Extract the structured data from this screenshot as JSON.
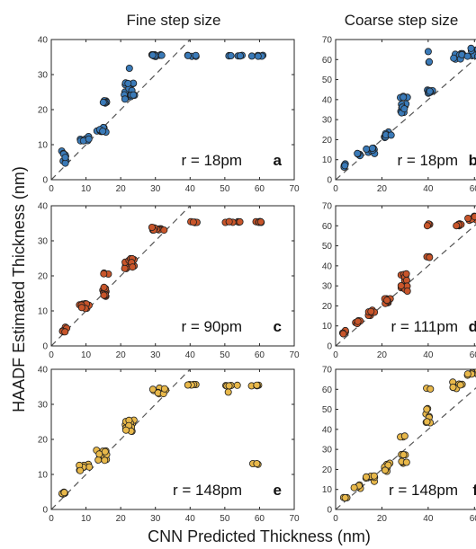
{
  "figure": {
    "col_titles": [
      "Fine step size",
      "Coarse step size"
    ],
    "ylabel": "HAADF Estimated Thickness (nm)",
    "xlabel": "CNN Predicted Thickness (nm)"
  },
  "colors": {
    "blue": "#3a7ab8",
    "orange": "#c8552a",
    "yellow": "#e8b84a",
    "edge": "#1e1e1e",
    "diag": "#555555"
  },
  "chart_data": [
    {
      "type": "scatter",
      "panel": "a",
      "note": "r = 18pm",
      "color": "blue",
      "xlim": [
        0,
        70
      ],
      "ylim": [
        0,
        40
      ],
      "xticks": [
        0,
        10,
        20,
        30,
        40,
        50,
        60,
        70
      ],
      "yticks": [
        0,
        10,
        20,
        30,
        40
      ],
      "diagonal": [
        [
          0,
          0
        ],
        [
          40,
          40
        ]
      ],
      "clusters": [
        {
          "x": [
            3,
            4.5
          ],
          "y": [
            4.5,
            8.5
          ],
          "n": 10
        },
        {
          "x": [
            8,
            11
          ],
          "y": [
            10.5,
            12.5
          ],
          "n": 10
        },
        {
          "x": [
            13,
            16
          ],
          "y": [
            13.5,
            15
          ],
          "n": 12
        },
        {
          "x": [
            14.5,
            16
          ],
          "y": [
            21.5,
            23
          ],
          "n": 8
        },
        {
          "x": [
            21,
            24
          ],
          "y": [
            23,
            28
          ],
          "n": 18
        },
        {
          "x": [
            29,
            33
          ],
          "y": [
            35,
            35.7
          ],
          "n": 10
        },
        {
          "x": [
            39,
            42
          ],
          "y": [
            35.2,
            35.5
          ],
          "n": 5
        },
        {
          "x": [
            50,
            55
          ],
          "y": [
            35.2,
            35.5
          ],
          "n": 7
        },
        {
          "x": [
            57,
            61
          ],
          "y": [
            35.2,
            35.5
          ],
          "n": 7
        }
      ],
      "points": [
        [
          22.5,
          31.8
        ]
      ]
    },
    {
      "type": "scatter",
      "panel": "b",
      "note": "r = 18pm",
      "color": "blue",
      "xlim": [
        0,
        70
      ],
      "ylim": [
        0,
        70
      ],
      "xticks": [
        0,
        20,
        40,
        60
      ],
      "yticks": [
        0,
        10,
        20,
        30,
        40,
        50,
        60,
        70
      ],
      "diagonal": [
        [
          0,
          0
        ],
        [
          67,
          67
        ]
      ],
      "clusters": [
        {
          "x": [
            3,
            4.5
          ],
          "y": [
            6,
            8
          ],
          "n": 5
        },
        {
          "x": [
            9,
            11
          ],
          "y": [
            12,
            13.5
          ],
          "n": 5
        },
        {
          "x": [
            13,
            17
          ],
          "y": [
            13,
            16
          ],
          "n": 8
        },
        {
          "x": [
            21,
            24
          ],
          "y": [
            21,
            24
          ],
          "n": 8
        },
        {
          "x": [
            28,
            31
          ],
          "y": [
            33,
            38
          ],
          "n": 10
        },
        {
          "x": [
            28,
            31
          ],
          "y": [
            41,
            43
          ],
          "n": 4
        },
        {
          "x": [
            39,
            42
          ],
          "y": [
            42,
            45
          ],
          "n": 8
        },
        {
          "x": [
            39,
            41
          ],
          "y": [
            58,
            59
          ],
          "n": 2
        },
        {
          "x": [
            50,
            55
          ],
          "y": [
            60,
            63
          ],
          "n": 10
        },
        {
          "x": [
            57,
            62
          ],
          "y": [
            61,
            66
          ],
          "n": 12
        }
      ],
      "points": [
        [
          40,
          64
        ]
      ]
    },
    {
      "type": "scatter",
      "panel": "c",
      "note": "r = 90pm",
      "color": "orange",
      "xlim": [
        0,
        70
      ],
      "ylim": [
        0,
        40
      ],
      "xticks": [
        0,
        10,
        20,
        30,
        40,
        50,
        60,
        70
      ],
      "yticks": [
        0,
        10,
        20,
        30,
        40
      ],
      "diagonal": [
        [
          0,
          0
        ],
        [
          40,
          40
        ]
      ],
      "clusters": [
        {
          "x": [
            3,
            4.5
          ],
          "y": [
            4,
            5.5
          ],
          "n": 6
        },
        {
          "x": [
            8,
            11
          ],
          "y": [
            10.5,
            12.5
          ],
          "n": 10
        },
        {
          "x": [
            13,
            16
          ],
          "y": [
            14,
            17
          ],
          "n": 12
        },
        {
          "x": [
            15,
            16.5
          ],
          "y": [
            20.5,
            20.8
          ],
          "n": 3
        },
        {
          "x": [
            21,
            24
          ],
          "y": [
            22,
            25
          ],
          "n": 15
        },
        {
          "x": [
            29,
            33
          ],
          "y": [
            33,
            34
          ],
          "n": 10
        },
        {
          "x": [
            39,
            42
          ],
          "y": [
            35.2,
            35.5
          ],
          "n": 5
        },
        {
          "x": [
            50,
            55
          ],
          "y": [
            35.2,
            35.5
          ],
          "n": 7
        },
        {
          "x": [
            57,
            61
          ],
          "y": [
            35.2,
            35.5
          ],
          "n": 7
        }
      ],
      "points": []
    },
    {
      "type": "scatter",
      "panel": "d",
      "note": "r = 111pm",
      "color": "orange",
      "xlim": [
        0,
        70
      ],
      "ylim": [
        0,
        70
      ],
      "xticks": [
        0,
        20,
        40,
        60
      ],
      "yticks": [
        0,
        10,
        20,
        30,
        40,
        50,
        60,
        70
      ],
      "diagonal": [
        [
          0,
          0
        ],
        [
          67,
          67
        ]
      ],
      "clusters": [
        {
          "x": [
            3,
            4.5
          ],
          "y": [
            6,
            8
          ],
          "n": 4
        },
        {
          "x": [
            8,
            11
          ],
          "y": [
            10,
            13
          ],
          "n": 6
        },
        {
          "x": [
            13,
            17
          ],
          "y": [
            14,
            19
          ],
          "n": 8
        },
        {
          "x": [
            21,
            24
          ],
          "y": [
            21,
            25
          ],
          "n": 10
        },
        {
          "x": [
            28,
            31
          ],
          "y": [
            27,
            37
          ],
          "n": 14
        },
        {
          "x": [
            39,
            41
          ],
          "y": [
            44,
            45
          ],
          "n": 3
        },
        {
          "x": [
            39,
            41
          ],
          "y": [
            60,
            61
          ],
          "n": 3
        },
        {
          "x": [
            50,
            55
          ],
          "y": [
            60,
            61
          ],
          "n": 8
        },
        {
          "x": [
            57,
            61
          ],
          "y": [
            62,
            65
          ],
          "n": 8
        }
      ],
      "points": []
    },
    {
      "type": "scatter",
      "panel": "e",
      "note": "r = 148pm",
      "color": "yellow",
      "xlim": [
        0,
        70
      ],
      "ylim": [
        0,
        40
      ],
      "xticks": [
        0,
        10,
        20,
        30,
        40,
        50,
        60,
        70
      ],
      "yticks": [
        0,
        10,
        20,
        30,
        40
      ],
      "diagonal": [
        [
          0,
          0
        ],
        [
          40,
          40
        ]
      ],
      "clusters": [
        {
          "x": [
            3,
            4.5
          ],
          "y": [
            4,
            5.5
          ],
          "n": 6
        },
        {
          "x": [
            8,
            11
          ],
          "y": [
            10.5,
            13
          ],
          "n": 8
        },
        {
          "x": [
            13,
            16
          ],
          "y": [
            14,
            17.5
          ],
          "n": 12
        },
        {
          "x": [
            21,
            24
          ],
          "y": [
            22,
            25.5
          ],
          "n": 14
        },
        {
          "x": [
            29,
            33
          ],
          "y": [
            33,
            35
          ],
          "n": 10
        },
        {
          "x": [
            39,
            42
          ],
          "y": [
            35.5,
            35.7
          ],
          "n": 5
        },
        {
          "x": [
            50,
            55
          ],
          "y": [
            35.2,
            35.5
          ],
          "n": 5
        },
        {
          "x": [
            57,
            61
          ],
          "y": [
            35.2,
            35.5
          ],
          "n": 5
        },
        {
          "x": [
            57,
            60
          ],
          "y": [
            12.7,
            13.1
          ],
          "n": 3
        }
      ],
      "points": [
        [
          51,
          33.5
        ]
      ]
    },
    {
      "type": "scatter",
      "panel": "f",
      "note": "r = 148pm",
      "color": "yellow",
      "xlim": [
        0,
        70
      ],
      "ylim": [
        0,
        70
      ],
      "xticks": [
        0,
        20,
        40,
        60
      ],
      "yticks": [
        0,
        10,
        20,
        30,
        40,
        50,
        60,
        70
      ],
      "diagonal": [
        [
          0,
          0
        ],
        [
          67,
          67
        ]
      ],
      "clusters": [
        {
          "x": [
            3,
            5
          ],
          "y": [
            5.5,
            6
          ],
          "n": 3
        },
        {
          "x": [
            8,
            11
          ],
          "y": [
            10,
            13
          ],
          "n": 5
        },
        {
          "x": [
            13,
            17
          ],
          "y": [
            14,
            17
          ],
          "n": 7
        },
        {
          "x": [
            21,
            24
          ],
          "y": [
            19,
            24
          ],
          "n": 10
        },
        {
          "x": [
            28,
            31
          ],
          "y": [
            23,
            24
          ],
          "n": 4
        },
        {
          "x": [
            28,
            31
          ],
          "y": [
            27,
            28
          ],
          "n": 3
        },
        {
          "x": [
            28,
            31
          ],
          "y": [
            36,
            37
          ],
          "n": 3
        },
        {
          "x": [
            39,
            41
          ],
          "y": [
            43,
            48
          ],
          "n": 6
        },
        {
          "x": [
            39,
            41
          ],
          "y": [
            50,
            51
          ],
          "n": 2
        },
        {
          "x": [
            39,
            41
          ],
          "y": [
            60,
            61
          ],
          "n": 2
        },
        {
          "x": [
            50,
            55
          ],
          "y": [
            59,
            64
          ],
          "n": 8
        },
        {
          "x": [
            57,
            62
          ],
          "y": [
            66,
            69
          ],
          "n": 8
        }
      ],
      "points": []
    }
  ]
}
